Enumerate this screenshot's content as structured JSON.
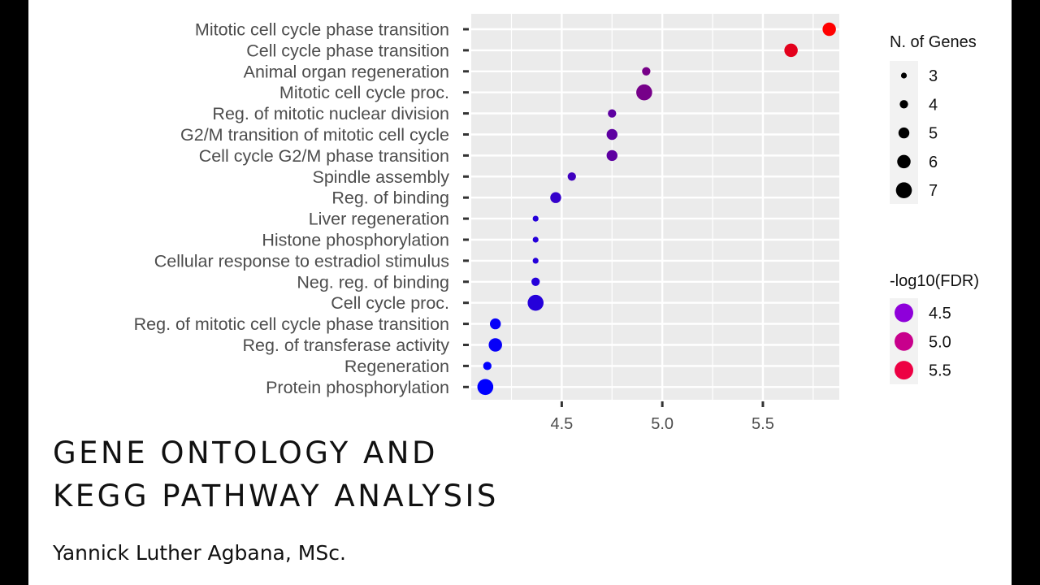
{
  "caption": {
    "title_line1": "GENE ONTOLOGY AND",
    "title_line2": "KEGG PATHWAY ANALYSIS",
    "author": "Yannick Luther Agbana, MSc."
  },
  "chart_data": {
    "type": "scatter",
    "xlabel": "-log10(FDR)",
    "ylabel": "",
    "xlim": [
      4.05,
      5.88
    ],
    "x_ticks": [
      4.5,
      5.0,
      5.5
    ],
    "grid": true,
    "legend_position": "right",
    "size_legend": {
      "title": "N. of Genes",
      "values": [
        3,
        4,
        5,
        6,
        7
      ]
    },
    "color_legend": {
      "title": "-log10(FDR)",
      "values": [
        4.5,
        5.0,
        5.5
      ],
      "colors": [
        "#8e00da",
        "#c8008c",
        "#ed0043"
      ]
    },
    "color_scale": {
      "low": "#0000ff",
      "high": "#ff0000",
      "min": 4.12,
      "max": 5.83
    },
    "points": [
      {
        "term": "Mitotic cell cycle phase transition",
        "x": 5.83,
        "genes": 6
      },
      {
        "term": "Cell cycle phase transition",
        "x": 5.64,
        "genes": 6
      },
      {
        "term": "Animal organ regeneration",
        "x": 4.92,
        "genes": 4
      },
      {
        "term": "Mitotic cell cycle proc.",
        "x": 4.91,
        "genes": 7
      },
      {
        "term": "Reg. of mitotic nuclear division",
        "x": 4.75,
        "genes": 4
      },
      {
        "term": "G2/M transition of mitotic cell cycle",
        "x": 4.75,
        "genes": 5
      },
      {
        "term": "Cell cycle G2/M phase transition",
        "x": 4.75,
        "genes": 5
      },
      {
        "term": "Spindle assembly",
        "x": 4.55,
        "genes": 4
      },
      {
        "term": "Reg. of binding",
        "x": 4.47,
        "genes": 5
      },
      {
        "term": "Liver regeneration",
        "x": 4.37,
        "genes": 3
      },
      {
        "term": "Histone phosphorylation",
        "x": 4.37,
        "genes": 3
      },
      {
        "term": "Cellular response to estradiol stimulus",
        "x": 4.37,
        "genes": 3
      },
      {
        "term": "Neg. reg. of binding",
        "x": 4.37,
        "genes": 4
      },
      {
        "term": "Cell cycle proc.",
        "x": 4.37,
        "genes": 7
      },
      {
        "term": "Reg. of mitotic cell cycle phase transition",
        "x": 4.17,
        "genes": 5
      },
      {
        "term": "Reg. of transferase activity",
        "x": 4.17,
        "genes": 6
      },
      {
        "term": "Regeneration",
        "x": 4.13,
        "genes": 4
      },
      {
        "term": "Protein phosphorylation",
        "x": 4.12,
        "genes": 7
      }
    ]
  }
}
